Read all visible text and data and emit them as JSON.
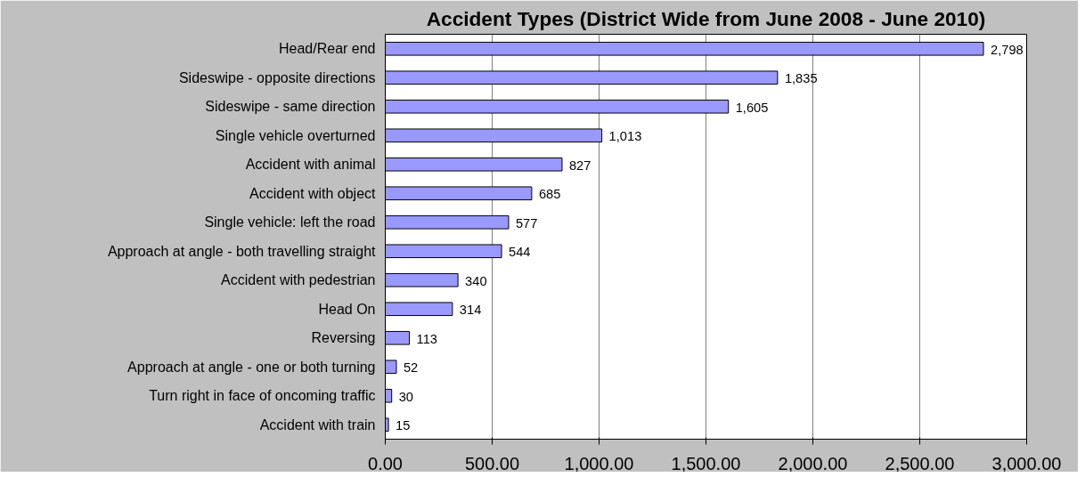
{
  "chart_data": {
    "type": "bar",
    "orientation": "horizontal",
    "title": "Accident Types (District Wide from June 2008 - June 2010)",
    "categories": [
      "Head/Rear end",
      "Sideswipe - opposite directions",
      "Sideswipe - same direction",
      "Single vehicle overturned",
      "Accident with animal",
      "Accident with object",
      "Single vehicle: left the road",
      "Approach at angle - both travelling straight",
      "Accident with pedestrian",
      "Head On",
      "Reversing",
      "Approach at angle - one or both turning",
      "Turn right in face of oncoming traffic",
      "Accident with train"
    ],
    "values": [
      2798,
      1835,
      1605,
      1013,
      827,
      685,
      577,
      544,
      340,
      314,
      113,
      52,
      30,
      15
    ],
    "value_labels": [
      "2,798",
      "1,835",
      "1,605",
      "1,013",
      "827",
      "685",
      "577",
      "544",
      "340",
      "314",
      "113",
      "52",
      "30",
      "15"
    ],
    "color": "#9999ff",
    "xlim": [
      0,
      3000
    ],
    "xticks": [
      {
        "value": 0,
        "label": "0.00"
      },
      {
        "value": 500,
        "label": "500.00"
      },
      {
        "value": 1000,
        "label": "1,000.00"
      },
      {
        "value": 1500,
        "label": "1,500.00"
      },
      {
        "value": 2000,
        "label": "2,000.00"
      },
      {
        "value": 2500,
        "label": "2,500.00"
      },
      {
        "value": 3000,
        "label": "3,000.00"
      }
    ],
    "grid": "x"
  }
}
